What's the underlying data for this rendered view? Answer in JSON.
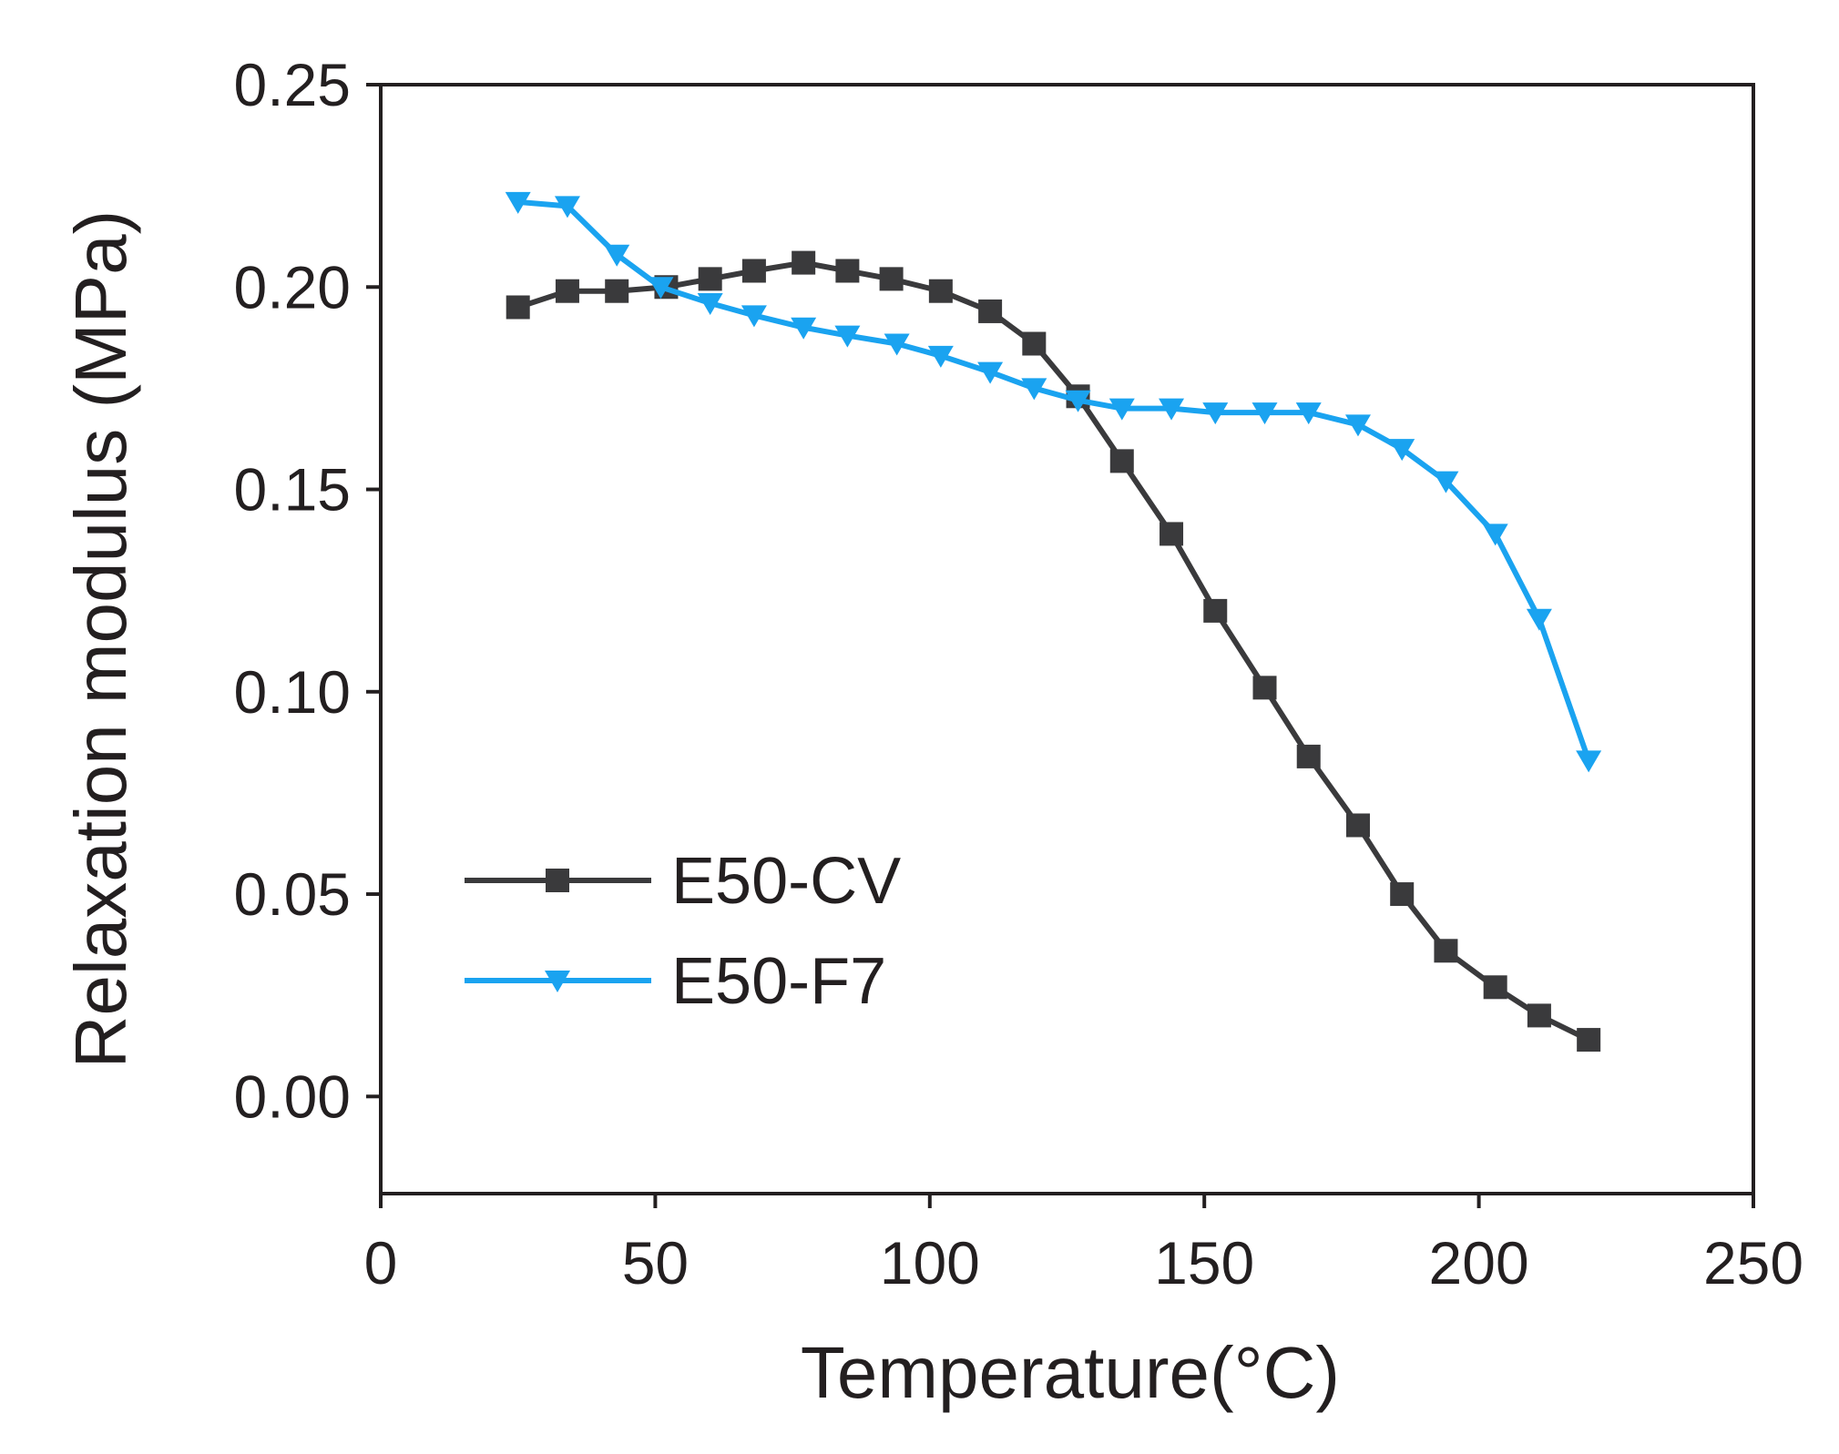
{
  "chart_data": {
    "type": "line",
    "title": "",
    "xlabel": "Temperature(°C)",
    "ylabel": "Relaxation modulus (MPa)",
    "xlim": [
      0,
      250
    ],
    "ylim": [
      -0.024,
      0.25
    ],
    "xticks": [
      0,
      50,
      100,
      150,
      200,
      250
    ],
    "xtick_labels": [
      "0",
      "50",
      "100",
      "150",
      "200",
      "250"
    ],
    "yticks": [
      0.0,
      0.05,
      0.1,
      0.15,
      0.2,
      0.25
    ],
    "ytick_labels": [
      "0.00",
      "0.05",
      "0.10",
      "0.15",
      "0.20",
      "0.25"
    ],
    "grid": false,
    "legend_position": "lower-left",
    "series": [
      {
        "name": "E50-CV",
        "color": "#3a3a3c",
        "marker": "square",
        "x": [
          25,
          34,
          43,
          52,
          60,
          68,
          77,
          85,
          93,
          102,
          111,
          119,
          127,
          135,
          144,
          152,
          161,
          169,
          178,
          186,
          194,
          203,
          211,
          220
        ],
        "y": [
          0.195,
          0.199,
          0.199,
          0.2,
          0.202,
          0.204,
          0.206,
          0.204,
          0.202,
          0.199,
          0.194,
          0.186,
          0.173,
          0.157,
          0.139,
          0.12,
          0.101,
          0.084,
          0.067,
          0.05,
          0.036,
          0.027,
          0.02,
          0.014
        ]
      },
      {
        "name": "E50-F7",
        "color": "#1aa3f0",
        "marker": "triangle-down",
        "x": [
          25,
          34,
          43,
          51,
          60,
          68,
          77,
          85,
          94,
          102,
          111,
          119,
          127,
          135,
          144,
          152,
          161,
          169,
          178,
          186,
          194,
          203,
          211,
          220
        ],
        "y": [
          0.221,
          0.22,
          0.208,
          0.2,
          0.196,
          0.193,
          0.19,
          0.188,
          0.186,
          0.183,
          0.179,
          0.175,
          0.172,
          0.17,
          0.17,
          0.169,
          0.169,
          0.169,
          0.166,
          0.16,
          0.152,
          0.139,
          0.118,
          0.083
        ]
      }
    ]
  }
}
